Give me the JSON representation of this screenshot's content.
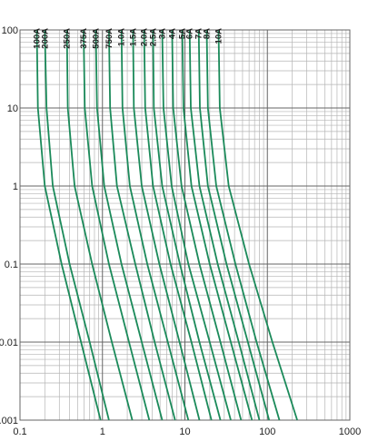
{
  "chart_data": {
    "type": "line",
    "log_x": true,
    "log_y": true,
    "grid": true,
    "xlim": [
      0.1,
      1000
    ],
    "ylim": [
      0.001,
      100
    ],
    "xticks": [
      0.1,
      1,
      10,
      100,
      1000
    ],
    "yticks": [
      100,
      10,
      1,
      0.1,
      0.01,
      0.001
    ],
    "color": "#1b8a5a",
    "series": [
      {
        "name": "100A",
        "x": [
          0.16,
          0.165,
          0.2,
          0.32,
          0.55,
          0.95
        ],
        "values": [
          100,
          10,
          1,
          0.1,
          0.01,
          0.001
        ]
      },
      {
        "name": "200A",
        "x": [
          0.2,
          0.21,
          0.25,
          0.4,
          0.7,
          1.2
        ],
        "values": [
          100,
          10,
          1,
          0.1,
          0.01,
          0.001
        ]
      },
      {
        "name": "250A",
        "x": [
          0.37,
          0.38,
          0.46,
          0.75,
          1.3,
          2.3
        ],
        "values": [
          100,
          10,
          1,
          0.1,
          0.01,
          0.001
        ]
      },
      {
        "name": "375A",
        "x": [
          0.59,
          0.61,
          0.75,
          1.2,
          2.1,
          3.7
        ],
        "values": [
          100,
          10,
          1,
          0.1,
          0.01,
          0.001
        ]
      },
      {
        "name": "500A",
        "x": [
          0.83,
          0.86,
          1.05,
          1.7,
          3,
          5.3
        ],
        "values": [
          100,
          10,
          1,
          0.1,
          0.01,
          0.001
        ]
      },
      {
        "name": "750A",
        "x": [
          1.2,
          1.24,
          1.5,
          2.5,
          4.3,
          7.6
        ],
        "values": [
          100,
          10,
          1,
          0.1,
          0.01,
          0.001
        ]
      },
      {
        "name": "1.0A",
        "x": [
          1.7,
          1.75,
          2.15,
          3.5,
          6.2,
          11
        ],
        "values": [
          100,
          10,
          1,
          0.1,
          0.01,
          0.001
        ]
      },
      {
        "name": "1.5A",
        "x": [
          2.35,
          2.4,
          3,
          4.9,
          8.6,
          15
        ],
        "values": [
          100,
          10,
          1,
          0.1,
          0.01,
          0.001
        ]
      },
      {
        "name": "2.0A",
        "x": [
          3.2,
          3.3,
          4.1,
          6.7,
          12,
          21
        ],
        "values": [
          100,
          10,
          1,
          0.1,
          0.01,
          0.001
        ]
      },
      {
        "name": "2.5A",
        "x": [
          4.1,
          4.2,
          5.3,
          8.7,
          15,
          27
        ],
        "values": [
          100,
          10,
          1,
          0.1,
          0.01,
          0.001
        ]
      },
      {
        "name": "3A",
        "x": [
          5.3,
          5.5,
          6.9,
          11,
          20,
          36
        ],
        "values": [
          100,
          10,
          1,
          0.1,
          0.01,
          0.001
        ]
      },
      {
        "name": "4A",
        "x": [
          7,
          7.2,
          9.1,
          15,
          27,
          48
        ],
        "values": [
          100,
          10,
          1,
          0.1,
          0.01,
          0.001
        ]
      },
      {
        "name": "5A",
        "x": [
          9.3,
          9.6,
          12,
          20,
          36,
          65
        ],
        "values": [
          100,
          10,
          1,
          0.1,
          0.01,
          0.001
        ]
      },
      {
        "name": "6A",
        "x": [
          11.4,
          11.8,
          15,
          25,
          45,
          80
        ],
        "values": [
          100,
          10,
          1,
          0.1,
          0.01,
          0.001
        ]
      },
      {
        "name": "7A",
        "x": [
          14.7,
          15.2,
          19,
          32,
          58,
          105
        ],
        "values": [
          100,
          10,
          1,
          0.1,
          0.01,
          0.001
        ]
      },
      {
        "name": "8A",
        "x": [
          18.4,
          19,
          24,
          41,
          74,
          140
        ],
        "values": [
          100,
          10,
          1,
          0.1,
          0.01,
          0.001
        ]
      },
      {
        "name": "10A",
        "x": [
          25.6,
          26.5,
          34,
          60,
          115,
          230
        ],
        "values": [
          100,
          10,
          1,
          0.1,
          0.01,
          0.001
        ]
      }
    ]
  }
}
